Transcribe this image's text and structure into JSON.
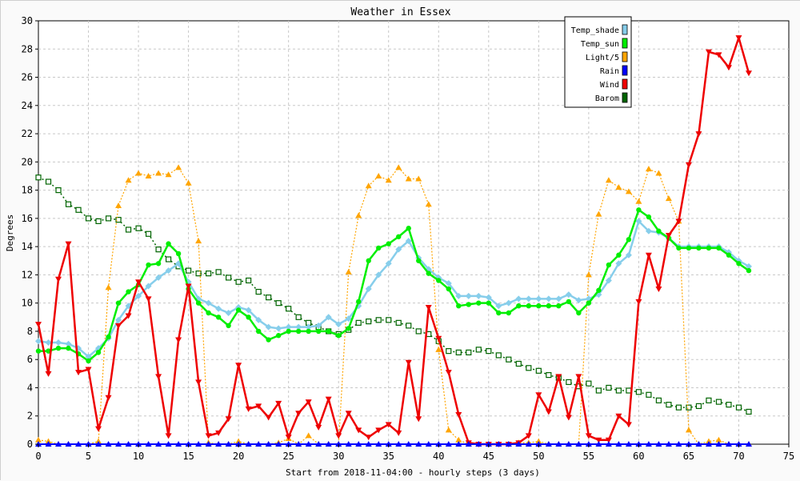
{
  "chart_data": {
    "type": "line",
    "title": "Weather in Essex",
    "xlabel": "Start from 2018-11-04:00 - hourly steps (3 days)",
    "ylabel": "Degrees",
    "xlim": [
      0,
      75
    ],
    "ylim": [
      0,
      30
    ],
    "xticks": [
      "0",
      "5",
      "10",
      "15",
      "20",
      "25",
      "30",
      "35",
      "40",
      "45",
      "50",
      "55",
      "60",
      "65",
      "70",
      "75"
    ],
    "yticks": [
      "0",
      "2",
      "4",
      "6",
      "8",
      "10",
      "12",
      "14",
      "16",
      "18",
      "20",
      "22",
      "24",
      "26",
      "28",
      "30"
    ],
    "grid": true,
    "legend_position": "top-right",
    "x": [
      0,
      1,
      2,
      3,
      4,
      5,
      6,
      7,
      8,
      9,
      10,
      11,
      12,
      13,
      14,
      15,
      16,
      17,
      18,
      19,
      20,
      21,
      22,
      23,
      24,
      25,
      26,
      27,
      28,
      29,
      30,
      31,
      32,
      33,
      34,
      35,
      36,
      37,
      38,
      39,
      40,
      41,
      42,
      43,
      44,
      45,
      46,
      47,
      48,
      49,
      50,
      51,
      52,
      53,
      54,
      55,
      56,
      57,
      58,
      59,
      60,
      61,
      62,
      63,
      64,
      65,
      66,
      67,
      68,
      69,
      70,
      71
    ],
    "series": [
      {
        "name": "Temp_shade",
        "color": "#87ceeb",
        "values": [
          7.3,
          7.2,
          7.2,
          7.1,
          6.8,
          6.2,
          6.8,
          7.5,
          8.8,
          9.8,
          10.5,
          11.2,
          11.8,
          12.3,
          12.8,
          11.5,
          10.3,
          10.0,
          9.6,
          9.3,
          9.7,
          9.5,
          8.8,
          8.3,
          8.2,
          8.3,
          8.3,
          8.3,
          8.4,
          9.0,
          8.5,
          8.9,
          9.8,
          11.0,
          12.0,
          12.8,
          13.8,
          14.4,
          13.2,
          12.4,
          11.8,
          11.4,
          10.5,
          10.5,
          10.5,
          10.4,
          9.8,
          10.0,
          10.3,
          10.3,
          10.3,
          10.3,
          10.3,
          10.6,
          10.2,
          10.3,
          10.6,
          11.6,
          12.8,
          13.4,
          15.8,
          15.1,
          15.0,
          14.6,
          14.0,
          14.0,
          14.0,
          14.0,
          14.0,
          13.6,
          13.0,
          12.6
        ]
      },
      {
        "name": "Temp_sun",
        "color": "#00ee00",
        "values": [
          6.6,
          6.6,
          6.8,
          6.8,
          6.4,
          5.9,
          6.5,
          7.6,
          10.0,
          10.8,
          11.3,
          12.7,
          12.8,
          14.2,
          13.5,
          11.0,
          10.0,
          9.3,
          9.0,
          8.4,
          9.5,
          9.0,
          8.0,
          7.4,
          7.7,
          8.0,
          8.0,
          8.0,
          8.0,
          8.0,
          7.7,
          8.2,
          10.1,
          13.0,
          13.9,
          14.2,
          14.7,
          15.3,
          13.0,
          12.1,
          11.6,
          11.0,
          9.8,
          9.9,
          10.0,
          10.0,
          9.3,
          9.3,
          9.8,
          9.8,
          9.8,
          9.8,
          9.8,
          10.1,
          9.3,
          10.0,
          10.9,
          12.7,
          13.4,
          14.5,
          16.6,
          16.1,
          15.1,
          14.6,
          13.9,
          13.9,
          13.9,
          13.9,
          13.9,
          13.4,
          12.8,
          12.3
        ]
      },
      {
        "name": "Light/5",
        "color": "#ffa500",
        "values": [
          0.3,
          0.2,
          0.0,
          0.0,
          0.0,
          0.0,
          0.2,
          11.1,
          16.9,
          18.7,
          19.2,
          19.0,
          19.2,
          19.1,
          19.6,
          18.5,
          14.4,
          0.1,
          0.0,
          0.0,
          0.2,
          0.0,
          0.0,
          0.0,
          0.1,
          0.4,
          0.0,
          0.6,
          0.0,
          0.0,
          0.0,
          12.2,
          16.2,
          18.3,
          19.0,
          18.7,
          19.6,
          18.8,
          18.8,
          17.0,
          6.7,
          1.0,
          0.3,
          0.0,
          0.0,
          0.0,
          0.0,
          0.0,
          0.1,
          0.1,
          0.2,
          0.0,
          0.0,
          0.0,
          0.0,
          12.0,
          16.3,
          18.7,
          18.2,
          17.9,
          17.2,
          19.5,
          19.2,
          17.4,
          15.8,
          1.0,
          0.0,
          0.2,
          0.3,
          0.0,
          0.0,
          0.0
        ]
      },
      {
        "name": "Rain",
        "color": "#0000ff",
        "values": [
          0,
          0,
          0,
          0,
          0,
          0,
          0,
          0,
          0,
          0,
          0,
          0,
          0,
          0,
          0,
          0,
          0,
          0,
          0,
          0,
          0,
          0,
          0,
          0,
          0,
          0,
          0,
          0,
          0,
          0,
          0,
          0,
          0,
          0,
          0,
          0,
          0,
          0,
          0,
          0,
          0,
          0,
          0,
          0,
          0,
          0,
          0,
          0,
          0,
          0,
          0,
          0,
          0,
          0,
          0,
          0,
          0,
          0,
          0,
          0,
          0,
          0,
          0,
          0,
          0,
          0,
          0,
          0,
          0,
          0,
          0,
          0
        ]
      },
      {
        "name": "Wind",
        "color": "#ee0000",
        "values": [
          8.5,
          5.0,
          11.7,
          14.2,
          5.1,
          5.3,
          1.1,
          3.3,
          8.4,
          9.1,
          11.5,
          10.3,
          4.8,
          0.6,
          7.4,
          11.2,
          4.4,
          0.6,
          0.8,
          1.8,
          5.6,
          2.5,
          2.7,
          1.9,
          2.9,
          0.5,
          2.2,
          3.0,
          1.2,
          3.2,
          0.6,
          2.2,
          1.0,
          0.5,
          1.0,
          1.4,
          0.8,
          5.8,
          1.8,
          9.7,
          7.5,
          5.1,
          2.1,
          0.1,
          0.0,
          0.0,
          0.0,
          0.0,
          0.1,
          0.6,
          3.5,
          2.3,
          4.8,
          1.9,
          4.8,
          0.6,
          0.3,
          0.3,
          2.0,
          1.4,
          10.1,
          13.4,
          11.0,
          14.8,
          15.8,
          19.8,
          22.0,
          27.8,
          27.6,
          26.7,
          28.8,
          26.3
        ]
      },
      {
        "name": "Barom",
        "color": "#006400",
        "values": [
          18.9,
          18.6,
          18.0,
          17.0,
          16.6,
          16.0,
          15.8,
          16.0,
          15.9,
          15.2,
          15.3,
          14.9,
          13.8,
          13.1,
          12.6,
          12.3,
          12.1,
          12.1,
          12.2,
          11.8,
          11.5,
          11.6,
          10.8,
          10.4,
          10.0,
          9.6,
          9.0,
          8.6,
          8.3,
          8.0,
          7.8,
          8.1,
          8.6,
          8.7,
          8.8,
          8.8,
          8.6,
          8.4,
          8.0,
          7.8,
          7.3,
          6.6,
          6.5,
          6.5,
          6.7,
          6.6,
          6.3,
          6.0,
          5.7,
          5.4,
          5.2,
          4.9,
          4.7,
          4.4,
          4.1,
          4.3,
          3.8,
          4.0,
          3.8,
          3.8,
          3.7,
          3.5,
          3.1,
          2.8,
          2.6,
          2.6,
          2.7,
          3.1,
          3.0,
          2.8,
          2.6,
          2.3
        ]
      }
    ]
  }
}
